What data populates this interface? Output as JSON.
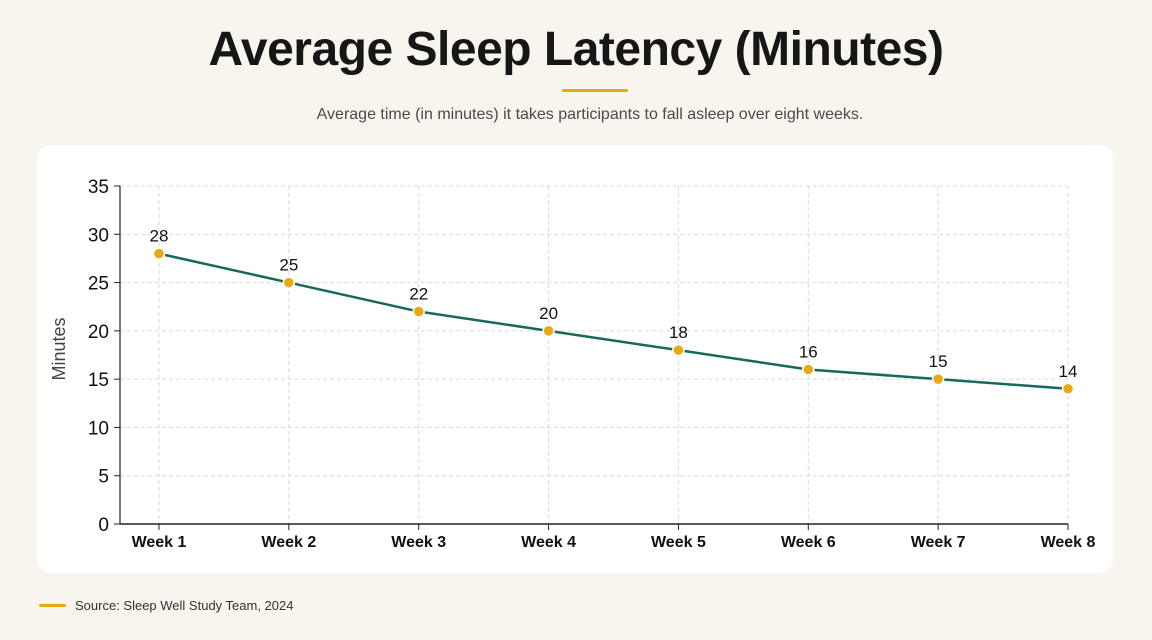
{
  "header": {
    "title": "Average Sleep Latency (Minutes)",
    "subtitle": "Average time (in minutes) it takes participants to fall asleep over eight weeks."
  },
  "footer": {
    "source": "Source: Sleep Well Study Team, 2024"
  },
  "colors": {
    "line": "#17695a",
    "marker": "#e8a913",
    "accent": "#e8a913",
    "grid": "#d9d9d9",
    "axis": "#222222"
  },
  "chart_data": {
    "type": "line",
    "title": "Average Sleep Latency (Minutes)",
    "subtitle": "Average time (in minutes) it takes participants to fall asleep over eight weeks.",
    "xlabel": "",
    "ylabel": "Minutes",
    "categories": [
      "Week 1",
      "Week 2",
      "Week 3",
      "Week 4",
      "Week 5",
      "Week 6",
      "Week 7",
      "Week 8"
    ],
    "values": [
      28,
      25,
      22,
      20,
      18,
      16,
      15,
      14
    ],
    "ylim": [
      0,
      35
    ],
    "yticks": [
      0,
      5,
      10,
      15,
      20,
      25,
      30,
      35
    ],
    "grid": true,
    "data_labels": true,
    "legend": "none"
  }
}
